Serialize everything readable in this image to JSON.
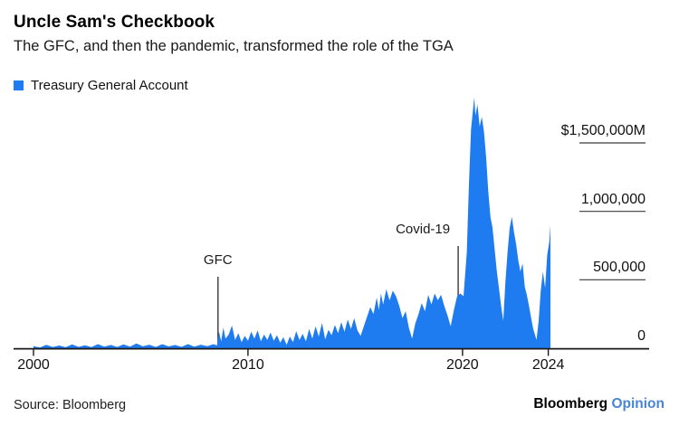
{
  "header": {
    "title": "Uncle Sam's Checkbook",
    "subtitle": "The GFC, and then the pandemic, transformed the role of the TGA"
  },
  "legend": {
    "label": "Treasury General Account"
  },
  "chart_data": {
    "type": "area",
    "title": "Uncle Sam's Checkbook",
    "series_name": "Treasury General Account",
    "unit": "$M",
    "area_color": "#1f7bf0",
    "axis_color": "#1a1a1a",
    "grid": false,
    "legend_position": "top-left",
    "xlim": [
      2000,
      2024.1
    ],
    "ylim": [
      0,
      1500000
    ],
    "x_ticks": [
      {
        "label": "2000",
        "year": 2000
      },
      {
        "label": "2010",
        "year": 2010
      },
      {
        "label": "2020",
        "year": 2020
      },
      {
        "label": "2024",
        "year": 2024
      }
    ],
    "y_ticks": [
      {
        "label": "$1,500,000M",
        "value": 1500000,
        "line": true
      },
      {
        "label": "1,000,000",
        "value": 1000000,
        "line": true
      },
      {
        "label": "500,000",
        "value": 500000,
        "line": true
      },
      {
        "label": "0",
        "value": 0,
        "line": false
      }
    ],
    "annotations": [
      {
        "label": "GFC",
        "year": 2008.6
      },
      {
        "label": "Covid-19",
        "year": 2019.8
      }
    ],
    "points": [
      [
        2000.0,
        15000
      ],
      [
        2000.3,
        6000
      ],
      [
        2000.6,
        25000
      ],
      [
        2000.9,
        9000
      ],
      [
        2001.2,
        20000
      ],
      [
        2001.5,
        7000
      ],
      [
        2001.8,
        28000
      ],
      [
        2002.1,
        10000
      ],
      [
        2002.4,
        22000
      ],
      [
        2002.7,
        8000
      ],
      [
        2003.0,
        30000
      ],
      [
        2003.3,
        12000
      ],
      [
        2003.6,
        24000
      ],
      [
        2003.9,
        9000
      ],
      [
        2004.2,
        28000
      ],
      [
        2004.5,
        11000
      ],
      [
        2004.8,
        35000
      ],
      [
        2005.1,
        14000
      ],
      [
        2005.4,
        26000
      ],
      [
        2005.7,
        9000
      ],
      [
        2006.0,
        30000
      ],
      [
        2006.3,
        13000
      ],
      [
        2006.6,
        24000
      ],
      [
        2006.9,
        10000
      ],
      [
        2007.2,
        30000
      ],
      [
        2007.5,
        12000
      ],
      [
        2007.8,
        26000
      ],
      [
        2008.1,
        15000
      ],
      [
        2008.4,
        30000
      ],
      [
        2008.55,
        20000
      ],
      [
        2008.65,
        120000
      ],
      [
        2008.75,
        50000
      ],
      [
        2008.85,
        150000
      ],
      [
        2008.95,
        70000
      ],
      [
        2009.1,
        100000
      ],
      [
        2009.25,
        165000
      ],
      [
        2009.4,
        60000
      ],
      [
        2009.55,
        110000
      ],
      [
        2009.7,
        45000
      ],
      [
        2009.85,
        90000
      ],
      [
        2010.0,
        55000
      ],
      [
        2010.15,
        120000
      ],
      [
        2010.3,
        70000
      ],
      [
        2010.45,
        130000
      ],
      [
        2010.6,
        50000
      ],
      [
        2010.75,
        100000
      ],
      [
        2010.9,
        60000
      ],
      [
        2011.05,
        115000
      ],
      [
        2011.2,
        55000
      ],
      [
        2011.35,
        95000
      ],
      [
        2011.5,
        40000
      ],
      [
        2011.65,
        80000
      ],
      [
        2011.8,
        25000
      ],
      [
        2011.95,
        85000
      ],
      [
        2012.1,
        45000
      ],
      [
        2012.25,
        125000
      ],
      [
        2012.4,
        60000
      ],
      [
        2012.55,
        105000
      ],
      [
        2012.7,
        50000
      ],
      [
        2012.85,
        140000
      ],
      [
        2013.0,
        70000
      ],
      [
        2013.15,
        160000
      ],
      [
        2013.3,
        85000
      ],
      [
        2013.45,
        185000
      ],
      [
        2013.6,
        65000
      ],
      [
        2013.75,
        135000
      ],
      [
        2013.9,
        95000
      ],
      [
        2014.05,
        170000
      ],
      [
        2014.2,
        110000
      ],
      [
        2014.35,
        190000
      ],
      [
        2014.5,
        120000
      ],
      [
        2014.65,
        210000
      ],
      [
        2014.8,
        140000
      ],
      [
        2014.95,
        220000
      ],
      [
        2015.1,
        130000
      ],
      [
        2015.25,
        90000
      ],
      [
        2015.4,
        160000
      ],
      [
        2015.55,
        230000
      ],
      [
        2015.7,
        300000
      ],
      [
        2015.85,
        250000
      ],
      [
        2016.0,
        370000
      ],
      [
        2016.1,
        280000
      ],
      [
        2016.2,
        400000
      ],
      [
        2016.3,
        320000
      ],
      [
        2016.45,
        430000
      ],
      [
        2016.6,
        350000
      ],
      [
        2016.75,
        420000
      ],
      [
        2016.9,
        380000
      ],
      [
        2017.05,
        310000
      ],
      [
        2017.2,
        220000
      ],
      [
        2017.35,
        270000
      ],
      [
        2017.5,
        150000
      ],
      [
        2017.65,
        70000
      ],
      [
        2017.8,
        180000
      ],
      [
        2017.95,
        250000
      ],
      [
        2018.1,
        330000
      ],
      [
        2018.25,
        270000
      ],
      [
        2018.4,
        390000
      ],
      [
        2018.55,
        320000
      ],
      [
        2018.7,
        400000
      ],
      [
        2018.85,
        350000
      ],
      [
        2019.0,
        390000
      ],
      [
        2019.15,
        310000
      ],
      [
        2019.3,
        240000
      ],
      [
        2019.45,
        160000
      ],
      [
        2019.6,
        280000
      ],
      [
        2019.75,
        380000
      ],
      [
        2019.9,
        400000
      ],
      [
        2020.05,
        380000
      ],
      [
        2020.2,
        700000
      ],
      [
        2020.3,
        1200000
      ],
      [
        2020.4,
        1600000
      ],
      [
        2020.5,
        1760000
      ],
      [
        2020.55,
        1832000
      ],
      [
        2020.6,
        1700000
      ],
      [
        2020.7,
        1780000
      ],
      [
        2020.8,
        1620000
      ],
      [
        2020.9,
        1690000
      ],
      [
        2021.0,
        1580000
      ],
      [
        2021.1,
        1400000
      ],
      [
        2021.2,
        1150000
      ],
      [
        2021.3,
        960000
      ],
      [
        2021.4,
        880000
      ],
      [
        2021.5,
        720000
      ],
      [
        2021.6,
        560000
      ],
      [
        2021.7,
        440000
      ],
      [
        2021.8,
        310000
      ],
      [
        2021.9,
        200000
      ],
      [
        2022.0,
        480000
      ],
      [
        2022.1,
        700000
      ],
      [
        2022.2,
        880000
      ],
      [
        2022.3,
        960000
      ],
      [
        2022.4,
        850000
      ],
      [
        2022.5,
        760000
      ],
      [
        2022.6,
        640000
      ],
      [
        2022.7,
        560000
      ],
      [
        2022.8,
        620000
      ],
      [
        2022.9,
        450000
      ],
      [
        2023.0,
        390000
      ],
      [
        2023.1,
        310000
      ],
      [
        2023.2,
        220000
      ],
      [
        2023.3,
        140000
      ],
      [
        2023.45,
        60000
      ],
      [
        2023.55,
        200000
      ],
      [
        2023.65,
        420000
      ],
      [
        2023.75,
        560000
      ],
      [
        2023.85,
        440000
      ],
      [
        2023.95,
        680000
      ],
      [
        2024.05,
        780000
      ],
      [
        2024.1,
        900000
      ]
    ]
  },
  "footer": {
    "source": "Source: Bloomberg",
    "brand": "Bloomberg",
    "brand_suffix": "Opinion",
    "brand_suffix_color": "#4886d5"
  }
}
